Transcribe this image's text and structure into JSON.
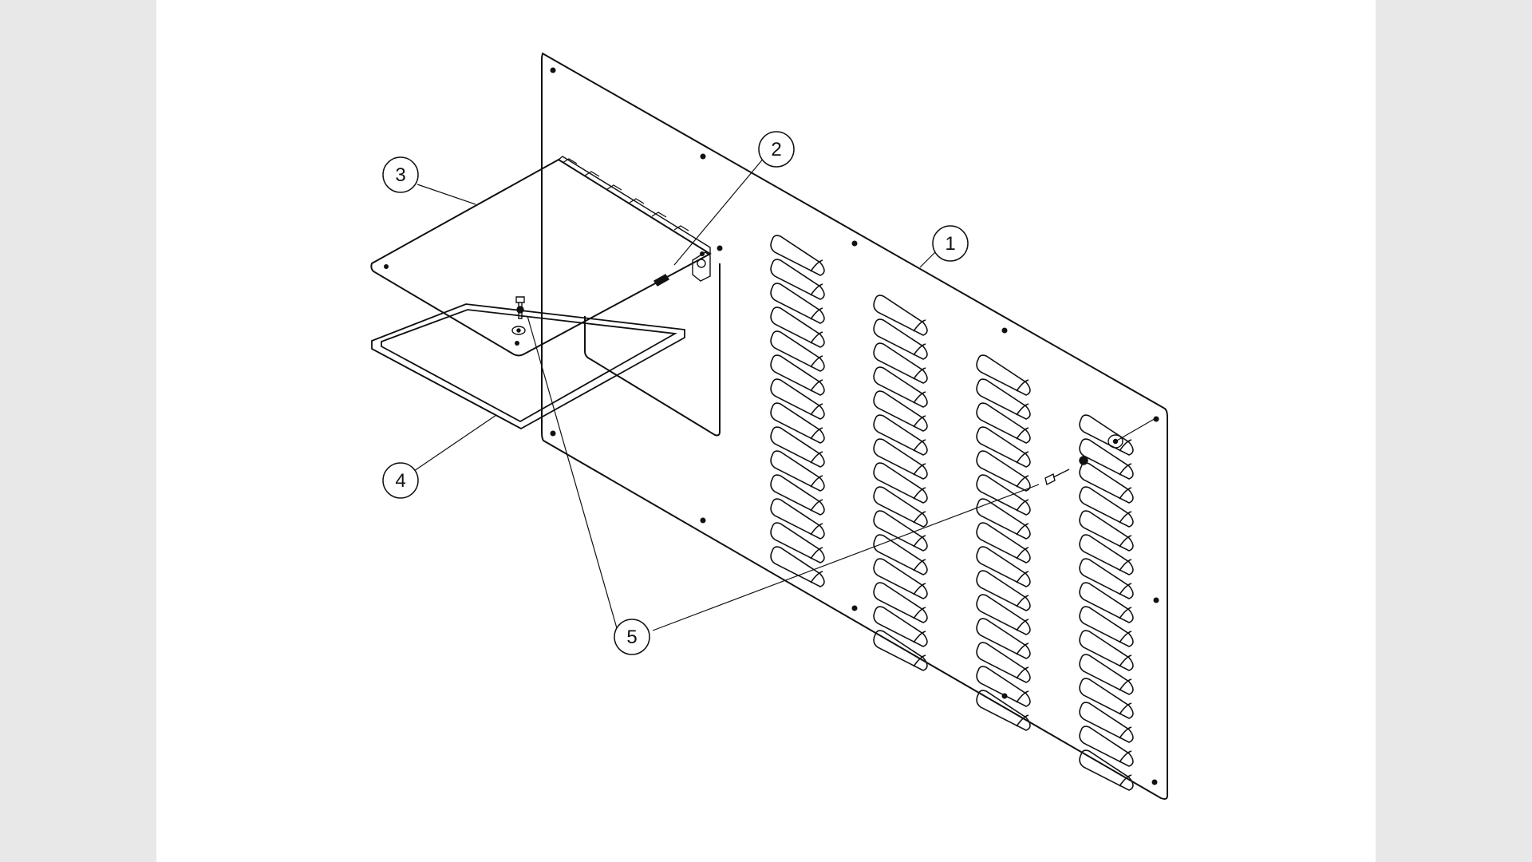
{
  "callouts": [
    {
      "id": "1",
      "label": "1"
    },
    {
      "id": "2",
      "label": "2"
    },
    {
      "id": "3",
      "label": "3"
    },
    {
      "id": "4",
      "label": "4"
    },
    {
      "id": "5",
      "label": "5"
    }
  ],
  "colors": {
    "line": "#111111",
    "sheet": "#ffffff",
    "background": "#e8e8e8"
  }
}
